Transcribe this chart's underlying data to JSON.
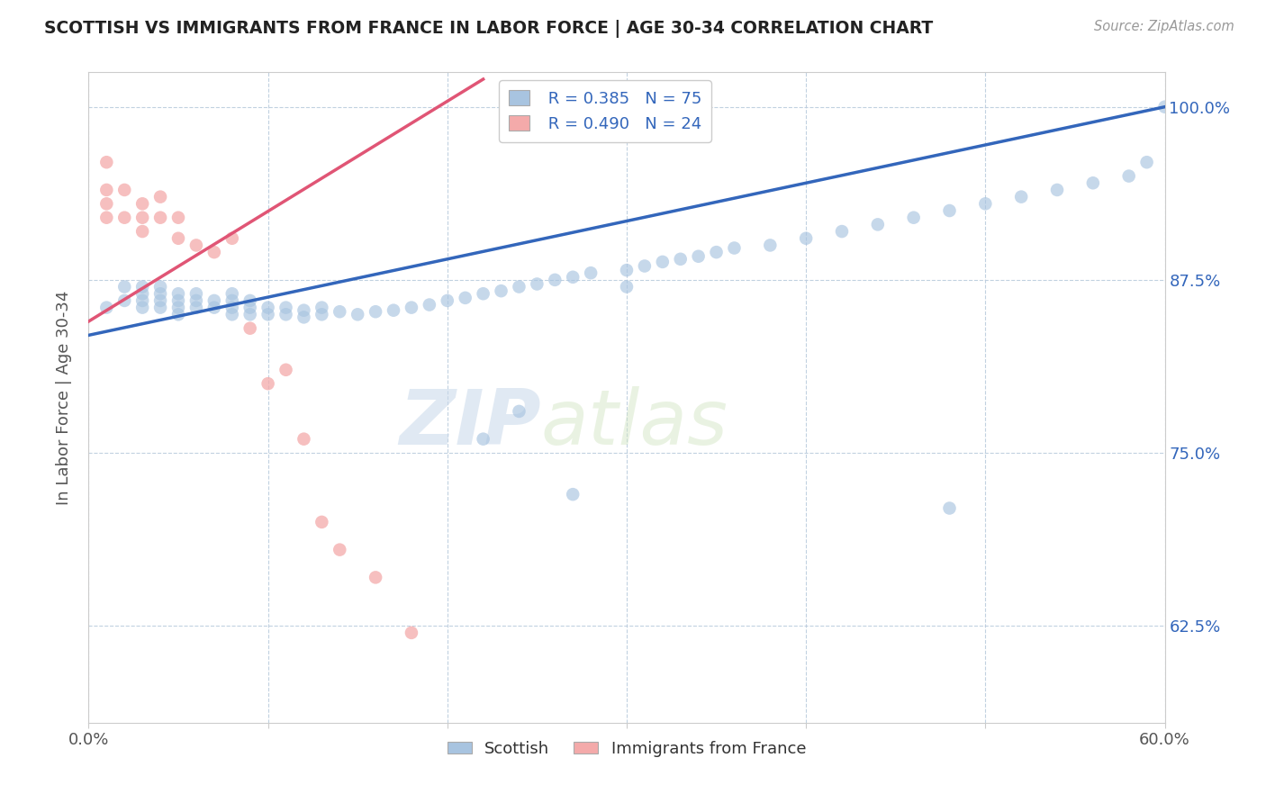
{
  "title": "SCOTTISH VS IMMIGRANTS FROM FRANCE IN LABOR FORCE | AGE 30-34 CORRELATION CHART",
  "source": "Source: ZipAtlas.com",
  "ylabel_label": "In Labor Force | Age 30-34",
  "xlim": [
    0.0,
    0.6
  ],
  "ylim": [
    0.555,
    1.025
  ],
  "x_ticks": [
    0.0,
    0.1,
    0.2,
    0.3,
    0.4,
    0.5,
    0.6
  ],
  "x_tick_labels": [
    "0.0%",
    "",
    "",
    "",
    "",
    "",
    "60.0%"
  ],
  "y_ticks": [
    0.625,
    0.75,
    0.875,
    1.0
  ],
  "y_tick_labels": [
    "62.5%",
    "75.0%",
    "87.5%",
    "100.0%"
  ],
  "blue_R": 0.385,
  "blue_N": 75,
  "pink_R": 0.49,
  "pink_N": 24,
  "blue_color": "#A8C4E0",
  "pink_color": "#F4AAAA",
  "line_blue": "#3366BB",
  "line_pink": "#E05575",
  "watermark_zip": "ZIP",
  "watermark_atlas": "atlas",
  "blue_scatter_x": [
    0.01,
    0.02,
    0.02,
    0.03,
    0.03,
    0.03,
    0.03,
    0.04,
    0.04,
    0.04,
    0.04,
    0.05,
    0.05,
    0.05,
    0.05,
    0.06,
    0.06,
    0.06,
    0.07,
    0.07,
    0.08,
    0.08,
    0.08,
    0.08,
    0.09,
    0.09,
    0.09,
    0.1,
    0.1,
    0.11,
    0.11,
    0.12,
    0.12,
    0.13,
    0.13,
    0.14,
    0.15,
    0.16,
    0.17,
    0.18,
    0.19,
    0.2,
    0.21,
    0.22,
    0.23,
    0.24,
    0.25,
    0.26,
    0.27,
    0.28,
    0.3,
    0.31,
    0.32,
    0.33,
    0.34,
    0.35,
    0.36,
    0.38,
    0.4,
    0.42,
    0.44,
    0.46,
    0.48,
    0.5,
    0.52,
    0.54,
    0.56,
    0.58,
    0.59,
    0.6,
    0.22,
    0.24,
    0.27,
    0.3,
    0.48
  ],
  "blue_scatter_y": [
    0.855,
    0.86,
    0.87,
    0.855,
    0.86,
    0.865,
    0.87,
    0.855,
    0.86,
    0.865,
    0.87,
    0.85,
    0.855,
    0.86,
    0.865,
    0.855,
    0.86,
    0.865,
    0.855,
    0.86,
    0.85,
    0.855,
    0.86,
    0.865,
    0.85,
    0.855,
    0.86,
    0.85,
    0.855,
    0.85,
    0.855,
    0.848,
    0.853,
    0.85,
    0.855,
    0.852,
    0.85,
    0.852,
    0.853,
    0.855,
    0.857,
    0.86,
    0.862,
    0.865,
    0.867,
    0.87,
    0.872,
    0.875,
    0.877,
    0.88,
    0.882,
    0.885,
    0.888,
    0.89,
    0.892,
    0.895,
    0.898,
    0.9,
    0.905,
    0.91,
    0.915,
    0.92,
    0.925,
    0.93,
    0.935,
    0.94,
    0.945,
    0.95,
    0.96,
    1.0,
    0.76,
    0.78,
    0.72,
    0.87,
    0.71
  ],
  "pink_scatter_x": [
    0.01,
    0.01,
    0.01,
    0.01,
    0.02,
    0.02,
    0.03,
    0.03,
    0.03,
    0.04,
    0.04,
    0.05,
    0.05,
    0.06,
    0.07,
    0.08,
    0.09,
    0.1,
    0.11,
    0.12,
    0.13,
    0.14,
    0.16,
    0.18
  ],
  "pink_scatter_y": [
    0.92,
    0.93,
    0.94,
    0.96,
    0.92,
    0.94,
    0.91,
    0.92,
    0.93,
    0.92,
    0.935,
    0.905,
    0.92,
    0.9,
    0.895,
    0.905,
    0.84,
    0.8,
    0.81,
    0.76,
    0.7,
    0.68,
    0.66,
    0.62
  ]
}
